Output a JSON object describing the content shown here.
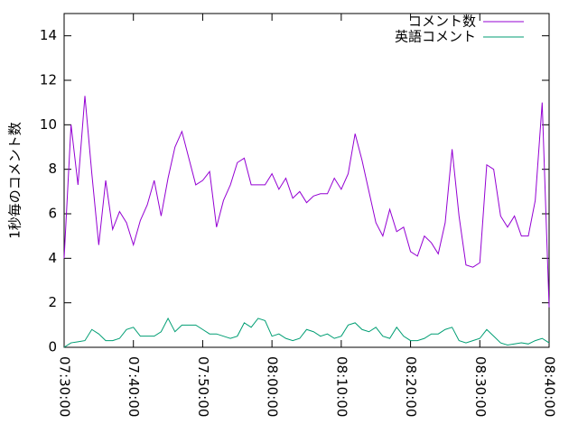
{
  "chart_data": {
    "type": "line",
    "ylabel": "1秒毎のコメント数",
    "x": [
      "07:30:00",
      "07:31:00",
      "07:32:00",
      "07:33:00",
      "07:34:00",
      "07:35:00",
      "07:36:00",
      "07:37:00",
      "07:38:00",
      "07:39:00",
      "07:40:00",
      "07:41:00",
      "07:42:00",
      "07:43:00",
      "07:44:00",
      "07:45:00",
      "07:46:00",
      "07:47:00",
      "07:48:00",
      "07:49:00",
      "07:50:00",
      "07:51:00",
      "07:52:00",
      "07:53:00",
      "07:54:00",
      "07:55:00",
      "07:56:00",
      "07:57:00",
      "07:58:00",
      "07:59:00",
      "08:00:00",
      "08:01:00",
      "08:02:00",
      "08:03:00",
      "08:04:00",
      "08:05:00",
      "08:06:00",
      "08:07:00",
      "08:08:00",
      "08:09:00",
      "08:10:00",
      "08:11:00",
      "08:12:00",
      "08:13:00",
      "08:14:00",
      "08:15:00",
      "08:16:00",
      "08:17:00",
      "08:18:00",
      "08:19:00",
      "08:20:00",
      "08:21:00",
      "08:22:00",
      "08:23:00",
      "08:24:00",
      "08:25:00",
      "08:26:00",
      "08:27:00",
      "08:28:00",
      "08:29:00",
      "08:30:00",
      "08:31:00",
      "08:32:00",
      "08:33:00",
      "08:34:00",
      "08:35:00",
      "08:36:00",
      "08:37:00",
      "08:38:00",
      "08:39:00",
      "08:40:00"
    ],
    "series": [
      {
        "name": "コメント数",
        "color": "#9400d3",
        "values": [
          4.0,
          10.0,
          7.3,
          11.3,
          7.8,
          4.6,
          7.5,
          5.3,
          6.1,
          5.6,
          4.6,
          5.7,
          6.4,
          7.5,
          5.9,
          7.6,
          9.0,
          9.7,
          8.5,
          7.3,
          7.5,
          7.9,
          5.4,
          6.6,
          7.3,
          8.3,
          8.5,
          7.3,
          7.3,
          7.3,
          7.8,
          7.1,
          7.6,
          6.7,
          7.0,
          6.5,
          6.8,
          6.9,
          6.9,
          7.6,
          7.1,
          7.8,
          9.6,
          8.4,
          7.0,
          5.6,
          5.0,
          6.2,
          5.2,
          5.4,
          4.3,
          4.1,
          5.0,
          4.7,
          4.2,
          5.6,
          8.9,
          5.9,
          3.7,
          3.6,
          3.8,
          8.2,
          8.0,
          5.9,
          5.4,
          5.9,
          5.0,
          5.0,
          6.6,
          11.0,
          1.8
        ]
      },
      {
        "name": "英語コメント",
        "color": "#009e73",
        "values": [
          0.0,
          0.2,
          0.25,
          0.3,
          0.8,
          0.6,
          0.3,
          0.3,
          0.4,
          0.8,
          0.9,
          0.5,
          0.5,
          0.5,
          0.7,
          1.3,
          0.7,
          1.0,
          1.0,
          1.0,
          0.8,
          0.6,
          0.6,
          0.5,
          0.4,
          0.5,
          1.1,
          0.9,
          1.3,
          1.2,
          0.5,
          0.6,
          0.4,
          0.3,
          0.4,
          0.8,
          0.7,
          0.5,
          0.6,
          0.4,
          0.5,
          1.0,
          1.1,
          0.8,
          0.7,
          0.9,
          0.5,
          0.4,
          0.9,
          0.5,
          0.3,
          0.3,
          0.4,
          0.6,
          0.6,
          0.8,
          0.9,
          0.3,
          0.2,
          0.3,
          0.4,
          0.8,
          0.5,
          0.2,
          0.1,
          0.15,
          0.2,
          0.15,
          0.3,
          0.4,
          0.2
        ]
      }
    ],
    "xlim": [
      "07:30:00",
      "08:40:00"
    ],
    "xticks": [
      "07:30:00",
      "07:40:00",
      "07:50:00",
      "08:00:00",
      "08:10:00",
      "08:20:00",
      "08:30:00",
      "08:40:00"
    ],
    "ylim": [
      0,
      15
    ],
    "yticks": [
      0,
      2,
      4,
      6,
      8,
      10,
      12,
      14
    ],
    "legend": "top-right"
  }
}
